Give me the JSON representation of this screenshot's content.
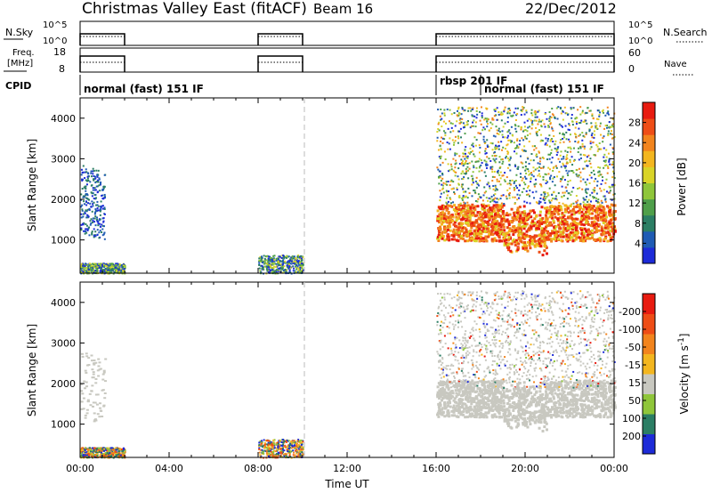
{
  "header": {
    "title": "Christmas Valley East (fitACF)",
    "beam": "Beam 16",
    "date": "22/Dec/2012"
  },
  "labels": {
    "nsky": "N.Sky",
    "nsearch": "N.Search",
    "freq_line1": "Freq.",
    "freq_line2": "[MHz]",
    "nave": "Nave",
    "cpid": "CPID"
  },
  "ticks": {
    "nsky_left": [
      "10^5",
      "10^0"
    ],
    "nsky_right": [
      "10^5",
      "10^0"
    ],
    "freq_left": [
      "18",
      "8"
    ],
    "freq_right": [
      "60",
      "0"
    ]
  },
  "cpid_labels": [
    {
      "text": "normal (fast) 151 IF",
      "start": 0
    },
    {
      "text": "rbsp 201 IF",
      "start": 16
    },
    {
      "text": "normal (fast) 151 IF",
      "start": 18
    }
  ],
  "chart_data": [
    {
      "type": "heatmap",
      "name": "power-panel",
      "xlabel": "",
      "ylabel": "Slant Range [km]",
      "xlim": [
        0,
        24
      ],
      "ylim": [
        180,
        4500
      ],
      "yticks": [
        "1000",
        "2000",
        "3000",
        "4000"
      ],
      "colorbar": {
        "label": "Power [dB]",
        "ticks": [
          "4",
          "8",
          "12",
          "16",
          "20",
          "24",
          "28"
        ],
        "colors": [
          "#1d2bd8",
          "#1f5bb4",
          "#2b7e64",
          "#4f9f4a",
          "#8fc63a",
          "#d9d428",
          "#f3b61f",
          "#f2841d",
          "#ee4d16",
          "#e81b10"
        ]
      },
      "active_intervals_ut": [
        [
          0,
          2
        ],
        [
          8,
          10
        ],
        [
          16,
          24
        ]
      ]
    },
    {
      "type": "heatmap",
      "name": "velocity-panel",
      "xlabel": "Time UT",
      "ylabel": "Slant Range [km]",
      "xlim": [
        0,
        24
      ],
      "ylim": [
        180,
        4500
      ],
      "xticks": [
        "00:00",
        "04:00",
        "08:00",
        "12:00",
        "16:00",
        "20:00",
        "00:00"
      ],
      "yticks": [
        "1000",
        "2000",
        "3000",
        "4000"
      ],
      "colorbar": {
        "label": "Velocity [m s^-1]",
        "ticks": [
          "200",
          "100",
          "50",
          "15",
          "-15",
          "-50",
          "-100",
          "-200"
        ],
        "colors": [
          "#1d2bd8",
          "#2b7e64",
          "#8fc63a",
          "#c8c8c0",
          "#f3b61f",
          "#f2841d",
          "#ee4d16",
          "#e81b10"
        ]
      }
    }
  ],
  "colors": {
    "ground_gray": "#c8c8c0",
    "range_red": "#e81b10",
    "range_orange": "#f2841d"
  }
}
